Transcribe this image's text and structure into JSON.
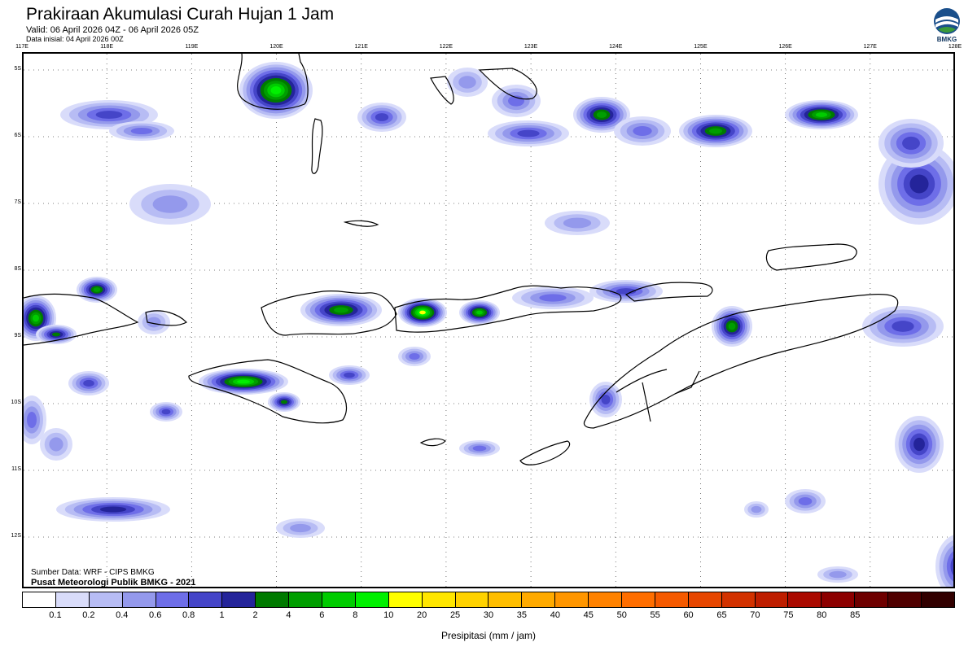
{
  "header": {
    "title": "Prakiraan Akumulasi Curah Hujan 1 Jam",
    "valid": "Valid: 06 April 2026 04Z - 06 April 2026 05Z",
    "init": "Data inisial: 04 April 2026 00Z"
  },
  "logo": {
    "text": "BMKG",
    "icon": "bmkg-logo-icon",
    "color": "#1a4f8b"
  },
  "map": {
    "lon_labels": [
      "117E",
      "118E",
      "119E",
      "120E",
      "121E",
      "122E",
      "123E",
      "124E",
      "125E",
      "126E",
      "127E",
      "128E"
    ],
    "lat_labels": [
      "5S",
      "6S",
      "7S",
      "8S",
      "9S",
      "10S",
      "11S",
      "12S"
    ],
    "credit_source": "Sumber Data: WRF - CIPS BMKG",
    "credit_org": "Pusat Meteorologi Publik BMKG - 2021"
  },
  "colorbar": {
    "colors": [
      "#ffffff",
      "#d9dcfa",
      "#b7bcf4",
      "#9499ec",
      "#6e6ee8",
      "#4545c8",
      "#24249a",
      "#007a00",
      "#009e00",
      "#00cc00",
      "#00f000",
      "#ffff00",
      "#ffe600",
      "#ffd200",
      "#ffbe00",
      "#ffaa00",
      "#ff9600",
      "#ff8200",
      "#ff6e00",
      "#f55a00",
      "#e64600",
      "#d23200",
      "#be1e00",
      "#aa0a00",
      "#8c0000",
      "#6e0000",
      "#500000",
      "#320000"
    ],
    "labels": [
      "0.1",
      "0.2",
      "0.4",
      "0.6",
      "0.8",
      "1",
      "2",
      "4",
      "6",
      "8",
      "10",
      "20",
      "25",
      "30",
      "35",
      "40",
      "45",
      "50",
      "55",
      "60",
      "65",
      "70",
      "75",
      "80",
      "85"
    ],
    "axis_title": "Presipitasi (mm / jam)"
  }
}
